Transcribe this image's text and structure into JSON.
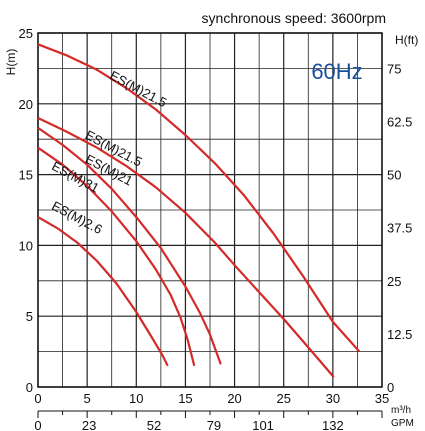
{
  "chart_data": {
    "type": "line",
    "title": "synchronous speed: 3600rpm",
    "annotation": "60Hz",
    "annotation_color": "#1a4f9c",
    "curve_color": "#d42a2a",
    "grid": true,
    "xlabel_left": "H(m)",
    "ylabel_right": "H(ft)",
    "x_unit": "m³/h",
    "x2_unit": "GPM",
    "xlim": [
      0,
      35
    ],
    "ylim": [
      0,
      25
    ],
    "x_ticks": [
      "0",
      "5",
      "10",
      "15",
      "20",
      "25",
      "30",
      "35"
    ],
    "y_ticks": [
      "0",
      "5",
      "10",
      "15",
      "20",
      "25"
    ],
    "y2_ticks": [
      "0",
      "12.5",
      "25",
      "37.5",
      "50",
      "62.5",
      "75"
    ],
    "x2_ticks": [
      "0",
      "23",
      "52",
      "79",
      "101",
      "132"
    ],
    "series": [
      {
        "name": "ES(M)21.5",
        "x": [
          0,
          3,
          6,
          9,
          12,
          15,
          18,
          21,
          24,
          27,
          30,
          32.7
        ],
        "y": [
          24.2,
          23.4,
          22.4,
          21.1,
          19.6,
          17.8,
          15.8,
          13.5,
          10.8,
          7.8,
          4.6,
          2.5
        ]
      },
      {
        "name": "ES(M)21.5",
        "x": [
          0,
          3,
          6,
          9,
          12,
          15,
          18,
          20,
          22.5,
          25,
          27.5,
          30.1
        ],
        "y": [
          19,
          18,
          16.9,
          15.6,
          14.1,
          12.3,
          10.2,
          8.6,
          6.7,
          4.8,
          2.8,
          0.7
        ]
      },
      {
        "name": "ES(M)21",
        "x": [
          0,
          2.5,
          5,
          7.5,
          10,
          12.5,
          15,
          16.5,
          17.5,
          18.6
        ],
        "y": [
          18.3,
          17.1,
          15.7,
          14,
          12,
          9.8,
          7.1,
          5.2,
          3.7,
          1.6
        ]
      },
      {
        "name": "ES(M)31",
        "x": [
          0,
          2.5,
          5,
          7.5,
          10,
          12,
          13.5,
          14.5,
          15.2,
          15.9
        ],
        "y": [
          16.9,
          15.7,
          14.2,
          12.4,
          10.3,
          8.3,
          6.5,
          4.9,
          3.4,
          1.5
        ]
      },
      {
        "name": "ES(M)2.6",
        "x": [
          0,
          2,
          4,
          6,
          8,
          10,
          11.5,
          12.7,
          13.2
        ],
        "y": [
          12,
          11.2,
          10.2,
          8.9,
          7.3,
          5.3,
          3.6,
          2.2,
          1.5
        ]
      }
    ],
    "labels": [
      {
        "text": "ES(M)21.5",
        "x": 7.2,
        "y": 21.8,
        "angle": 28
      },
      {
        "text": "ES(M)21.5",
        "x": 4.7,
        "y": 17.6,
        "angle": 28
      },
      {
        "text": "ES(M)21",
        "x": 4.7,
        "y": 15.9,
        "angle": 28
      },
      {
        "text": "ES(M)31",
        "x": 1.3,
        "y": 15.4,
        "angle": 28
      },
      {
        "text": "ES(M)2.6",
        "x": 1.3,
        "y": 12.6,
        "angle": 28
      }
    ]
  }
}
